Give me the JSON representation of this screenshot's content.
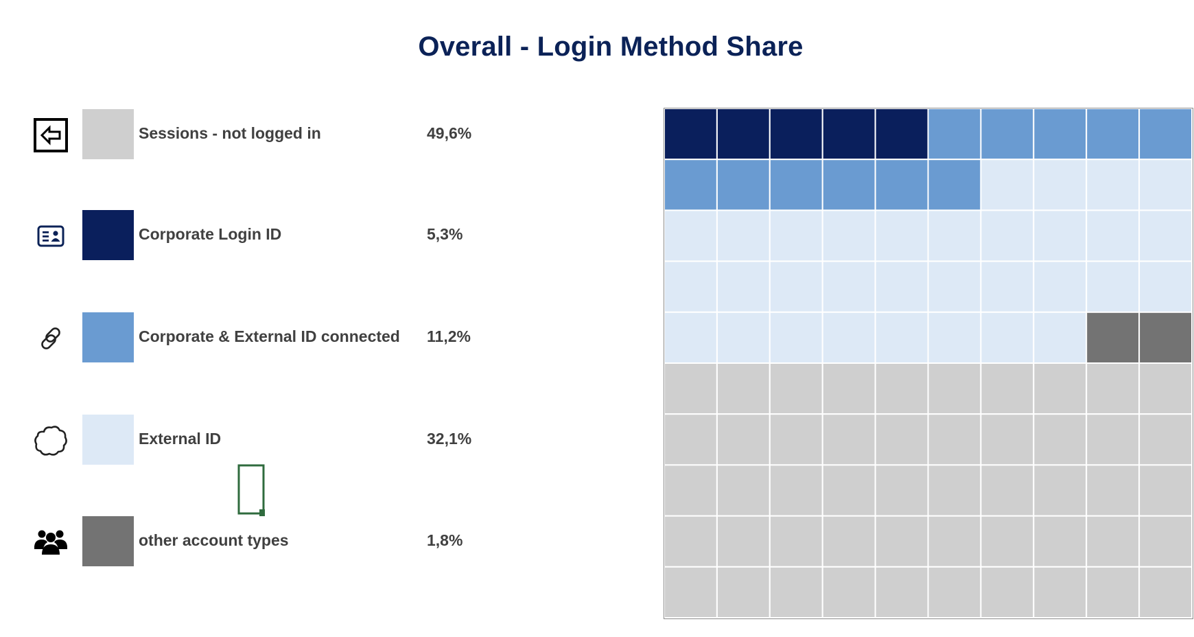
{
  "chart_data": {
    "type": "waffle",
    "title": "Overall - Login Method Share",
    "grid": {
      "rows": 10,
      "cols": 10
    },
    "categories": [
      {
        "key": "sessions_not_logged_in",
        "label": "Sessions - not logged in",
        "value": 49.6,
        "value_label": "49,6%",
        "color": "#cfcfcf",
        "icon": "logout-arrow-icon",
        "cells": 50
      },
      {
        "key": "corporate_login_id",
        "label": "Corporate Login ID",
        "value": 5.3,
        "value_label": "5,3%",
        "color": "#0a1f5c",
        "icon": "id-card-icon",
        "cells": 5
      },
      {
        "key": "corporate_external_connected",
        "label": "Corporate & External ID connected",
        "value": 11.2,
        "value_label": "11,2%",
        "color": "#6a9bd1",
        "icon": "link-icon",
        "cells": 11
      },
      {
        "key": "external_id",
        "label": "External ID",
        "value": 32.1,
        "value_label": "32,1%",
        "color": "#dde9f6",
        "icon": "cloud-icon",
        "cells": 32
      },
      {
        "key": "other_account_types",
        "label": "other account types",
        "value": 1.8,
        "value_label": "1,8%",
        "color": "#737373",
        "icon": "users-group-icon",
        "cells": 2
      }
    ],
    "fill_order": [
      "corporate_login_id",
      "corporate_external_connected",
      "external_id",
      "other_account_types",
      "sessions_not_logged_in"
    ],
    "legend_position": "left"
  }
}
